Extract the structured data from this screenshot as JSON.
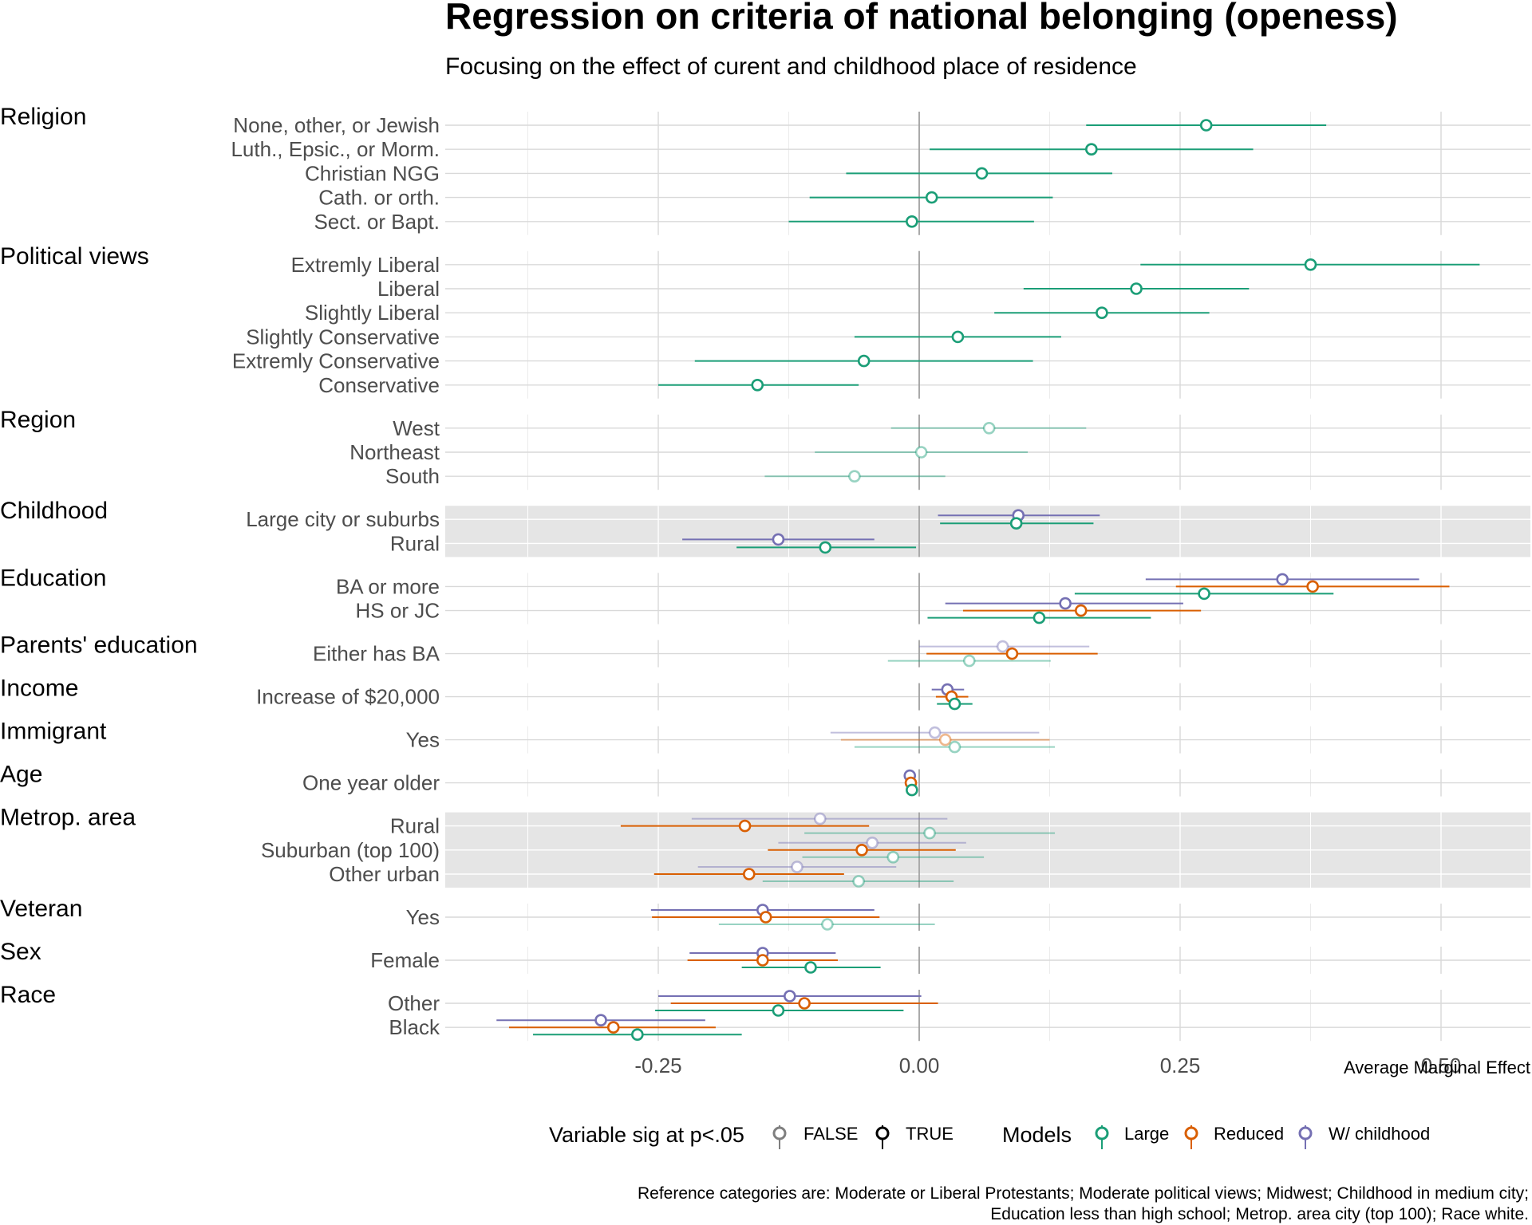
{
  "chart_data": {
    "type": "scatter",
    "title": "Regression on criteria of national belonging (openess)",
    "subtitle": "Focusing on the effect of curent and childhood place of residence",
    "xlabel": "Average Marginal Effect",
    "xlim": [
      -0.455,
      0.59
    ],
    "xticks": [
      -0.25,
      0.0,
      0.25,
      0.5
    ],
    "xtick_labels": [
      "-0.25",
      "0.00",
      "0.25",
      "0.50"
    ],
    "grid": true,
    "legend_position": "bottom",
    "legend": {
      "sig_title": "Variable sig at p<.05",
      "sig_items": [
        "FALSE",
        "TRUE"
      ],
      "models_title": "Models",
      "models": [
        {
          "name": "Large",
          "color": "#1b9e77"
        },
        {
          "name": "Reduced",
          "color": "#d95f02"
        },
        {
          "name": "W/ childhood",
          "color": "#7570b3"
        }
      ]
    },
    "caption": [
      "Reference categories are: Moderate or Liberal Protestants; Moderate political views; Midwest; Childhood in medium city;",
      "Education less than high school; Metrop. area city (top 100); Race white."
    ],
    "groups": [
      {
        "name": "Religion",
        "shaded": false,
        "categories": [
          {
            "label": "None, other, or Jewish",
            "points": [
              {
                "model": "Large",
                "est": 0.275,
                "lo": 0.16,
                "hi": 0.39,
                "sig": true
              }
            ]
          },
          {
            "label": "Luth., Epsic., or Morm.",
            "points": [
              {
                "model": "Large",
                "est": 0.165,
                "lo": 0.01,
                "hi": 0.32,
                "sig": true
              }
            ]
          },
          {
            "label": "Christian NGG",
            "points": [
              {
                "model": "Large",
                "est": 0.06,
                "lo": -0.07,
                "hi": 0.185,
                "sig": true
              }
            ]
          },
          {
            "label": "Cath. or orth.",
            "points": [
              {
                "model": "Large",
                "est": 0.012,
                "lo": -0.105,
                "hi": 0.128,
                "sig": true
              }
            ]
          },
          {
            "label": "Sect. or Bapt.",
            "points": [
              {
                "model": "Large",
                "est": -0.007,
                "lo": -0.125,
                "hi": 0.11,
                "sig": true
              }
            ]
          }
        ]
      },
      {
        "name": "Political views",
        "shaded": false,
        "categories": [
          {
            "label": "Extremly Liberal",
            "points": [
              {
                "model": "Large",
                "est": 0.375,
                "lo": 0.212,
                "hi": 0.537,
                "sig": true
              }
            ]
          },
          {
            "label": "Liberal",
            "points": [
              {
                "model": "Large",
                "est": 0.208,
                "lo": 0.1,
                "hi": 0.316,
                "sig": true
              }
            ]
          },
          {
            "label": "Slightly Liberal",
            "points": [
              {
                "model": "Large",
                "est": 0.175,
                "lo": 0.072,
                "hi": 0.278,
                "sig": true
              }
            ]
          },
          {
            "label": "Slightly Conservative",
            "points": [
              {
                "model": "Large",
                "est": 0.037,
                "lo": -0.062,
                "hi": 0.136,
                "sig": true
              }
            ]
          },
          {
            "label": "Extremly Conservative",
            "points": [
              {
                "model": "Large",
                "est": -0.053,
                "lo": -0.215,
                "hi": 0.109,
                "sig": true
              }
            ]
          },
          {
            "label": "Conservative",
            "points": [
              {
                "model": "Large",
                "est": -0.155,
                "lo": -0.25,
                "hi": -0.058,
                "sig": true
              }
            ]
          }
        ]
      },
      {
        "name": "Region",
        "shaded": false,
        "categories": [
          {
            "label": "West",
            "points": [
              {
                "model": "Large",
                "est": 0.067,
                "lo": -0.027,
                "hi": 0.16,
                "sig": false
              }
            ]
          },
          {
            "label": "Northeast",
            "points": [
              {
                "model": "Large",
                "est": 0.002,
                "lo": -0.1,
                "hi": 0.104,
                "sig": false
              }
            ]
          },
          {
            "label": "South",
            "points": [
              {
                "model": "Large",
                "est": -0.062,
                "lo": -0.148,
                "hi": 0.025,
                "sig": false
              }
            ]
          }
        ]
      },
      {
        "name": "Childhood",
        "shaded": true,
        "categories": [
          {
            "label": "Large city or suburbs",
            "points": [
              {
                "model": "W/ childhood",
                "est": 0.095,
                "lo": 0.018,
                "hi": 0.173,
                "sig": true
              },
              {
                "model": "Large",
                "est": 0.093,
                "lo": 0.02,
                "hi": 0.167,
                "sig": true
              }
            ]
          },
          {
            "label": "Rural",
            "points": [
              {
                "model": "W/ childhood",
                "est": -0.135,
                "lo": -0.227,
                "hi": -0.043,
                "sig": true
              },
              {
                "model": "Large",
                "est": -0.09,
                "lo": -0.175,
                "hi": -0.003,
                "sig": true
              }
            ]
          }
        ]
      },
      {
        "name": "Education",
        "shaded": false,
        "categories": [
          {
            "label": "BA or more",
            "points": [
              {
                "model": "W/ childhood",
                "est": 0.348,
                "lo": 0.217,
                "hi": 0.479,
                "sig": true
              },
              {
                "model": "Reduced",
                "est": 0.377,
                "lo": 0.246,
                "hi": 0.508,
                "sig": true
              },
              {
                "model": "Large",
                "est": 0.273,
                "lo": 0.149,
                "hi": 0.397,
                "sig": true
              }
            ]
          },
          {
            "label": "HS or JC",
            "points": [
              {
                "model": "W/ childhood",
                "est": 0.14,
                "lo": 0.025,
                "hi": 0.253,
                "sig": true
              },
              {
                "model": "Reduced",
                "est": 0.155,
                "lo": 0.042,
                "hi": 0.27,
                "sig": true
              },
              {
                "model": "Large",
                "est": 0.115,
                "lo": 0.008,
                "hi": 0.222,
                "sig": true
              }
            ]
          }
        ]
      },
      {
        "name": "Parents' education",
        "shaded": false,
        "categories": [
          {
            "label": "Either has BA",
            "points": [
              {
                "model": "W/ childhood",
                "est": 0.08,
                "lo": 0.0,
                "hi": 0.163,
                "sig": false
              },
              {
                "model": "Reduced",
                "est": 0.089,
                "lo": 0.007,
                "hi": 0.171,
                "sig": true
              },
              {
                "model": "Large",
                "est": 0.048,
                "lo": -0.03,
                "hi": 0.126,
                "sig": false
              }
            ]
          }
        ]
      },
      {
        "name": "Income",
        "shaded": false,
        "categories": [
          {
            "label": "Increase of $20,000",
            "points": [
              {
                "model": "W/ childhood",
                "est": 0.027,
                "lo": 0.012,
                "hi": 0.043,
                "sig": true
              },
              {
                "model": "Reduced",
                "est": 0.031,
                "lo": 0.016,
                "hi": 0.047,
                "sig": true
              },
              {
                "model": "Large",
                "est": 0.034,
                "lo": 0.017,
                "hi": 0.051,
                "sig": true
              }
            ]
          }
        ]
      },
      {
        "name": "Immigrant",
        "shaded": false,
        "categories": [
          {
            "label": "Yes",
            "points": [
              {
                "model": "W/ childhood",
                "est": 0.015,
                "lo": -0.085,
                "hi": 0.115,
                "sig": false
              },
              {
                "model": "Reduced",
                "est": 0.025,
                "lo": -0.075,
                "hi": 0.125,
                "sig": false
              },
              {
                "model": "Large",
                "est": 0.034,
                "lo": -0.062,
                "hi": 0.13,
                "sig": false
              }
            ]
          }
        ]
      },
      {
        "name": "Age",
        "shaded": false,
        "categories": [
          {
            "label": "One year older",
            "points": [
              {
                "model": "W/ childhood",
                "est": -0.009,
                "lo": -0.013,
                "hi": -0.005,
                "sig": true
              },
              {
                "model": "Reduced",
                "est": -0.008,
                "lo": -0.012,
                "hi": -0.004,
                "sig": true
              },
              {
                "model": "Large",
                "est": -0.007,
                "lo": -0.011,
                "hi": -0.003,
                "sig": true
              }
            ]
          }
        ]
      },
      {
        "name": "Metrop. area",
        "shaded": true,
        "categories": [
          {
            "label": "Rural",
            "points": [
              {
                "model": "W/ childhood",
                "est": -0.095,
                "lo": -0.218,
                "hi": 0.027,
                "sig": false
              },
              {
                "model": "Reduced",
                "est": -0.167,
                "lo": -0.286,
                "hi": -0.048,
                "sig": true
              },
              {
                "model": "Large",
                "est": 0.01,
                "lo": -0.11,
                "hi": 0.13,
                "sig": false
              }
            ]
          },
          {
            "label": "Suburban (top 100)",
            "points": [
              {
                "model": "W/ childhood",
                "est": -0.045,
                "lo": -0.135,
                "hi": 0.045,
                "sig": false
              },
              {
                "model": "Reduced",
                "est": -0.055,
                "lo": -0.145,
                "hi": 0.035,
                "sig": true
              },
              {
                "model": "Large",
                "est": -0.025,
                "lo": -0.112,
                "hi": 0.062,
                "sig": false
              }
            ]
          },
          {
            "label": "Other urban",
            "points": [
              {
                "model": "W/ childhood",
                "est": -0.117,
                "lo": -0.212,
                "hi": -0.022,
                "sig": false
              },
              {
                "model": "Reduced",
                "est": -0.163,
                "lo": -0.254,
                "hi": -0.072,
                "sig": true
              },
              {
                "model": "Large",
                "est": -0.058,
                "lo": -0.15,
                "hi": 0.033,
                "sig": false
              }
            ]
          }
        ]
      },
      {
        "name": "Veteran",
        "shaded": false,
        "categories": [
          {
            "label": "Yes",
            "points": [
              {
                "model": "W/ childhood",
                "est": -0.15,
                "lo": -0.257,
                "hi": -0.043,
                "sig": true
              },
              {
                "model": "Reduced",
                "est": -0.147,
                "lo": -0.256,
                "hi": -0.038,
                "sig": true
              },
              {
                "model": "Large",
                "est": -0.088,
                "lo": -0.192,
                "hi": 0.015,
                "sig": false
              }
            ]
          }
        ]
      },
      {
        "name": "Sex",
        "shaded": false,
        "categories": [
          {
            "label": "Female",
            "points": [
              {
                "model": "W/ childhood",
                "est": -0.15,
                "lo": -0.22,
                "hi": -0.08,
                "sig": true
              },
              {
                "model": "Reduced",
                "est": -0.15,
                "lo": -0.222,
                "hi": -0.078,
                "sig": true
              },
              {
                "model": "Large",
                "est": -0.104,
                "lo": -0.17,
                "hi": -0.037,
                "sig": true
              }
            ]
          }
        ]
      },
      {
        "name": "Race",
        "shaded": false,
        "categories": [
          {
            "label": "Other",
            "points": [
              {
                "model": "W/ childhood",
                "est": -0.124,
                "lo": -0.25,
                "hi": 0.002,
                "sig": true
              },
              {
                "model": "Reduced",
                "est": -0.11,
                "lo": -0.238,
                "hi": 0.018,
                "sig": true
              },
              {
                "model": "Large",
                "est": -0.135,
                "lo": -0.253,
                "hi": -0.015,
                "sig": true
              }
            ]
          },
          {
            "label": "Black",
            "points": [
              {
                "model": "W/ childhood",
                "est": -0.305,
                "lo": -0.405,
                "hi": -0.205,
                "sig": true
              },
              {
                "model": "Reduced",
                "est": -0.293,
                "lo": -0.393,
                "hi": -0.195,
                "sig": true
              },
              {
                "model": "Large",
                "est": -0.27,
                "lo": -0.37,
                "hi": -0.17,
                "sig": true
              }
            ]
          }
        ]
      }
    ]
  }
}
